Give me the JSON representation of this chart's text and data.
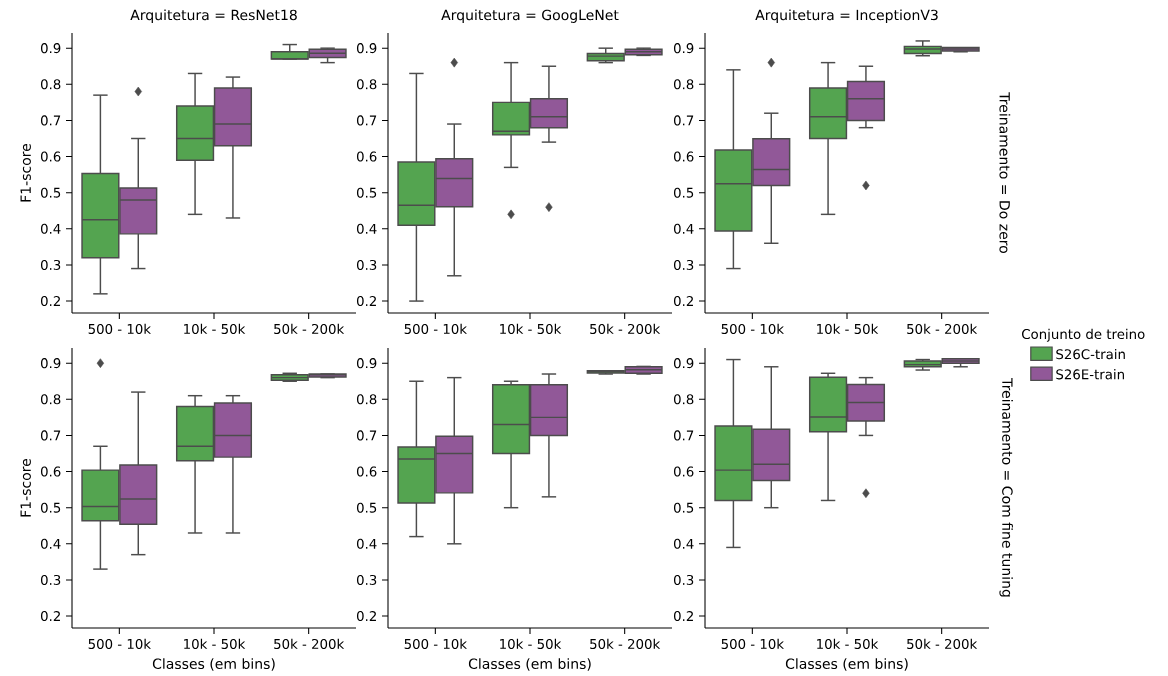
{
  "chart_data": [
    {
      "type": "box",
      "title": "Arquitetura = ResNet18",
      "ylabel": "F1-score",
      "categories": [
        "500 - 10k",
        "10k - 50k",
        "50k - 200k"
      ],
      "ylim": [
        0.167,
        0.942
      ],
      "yticks": [
        0.2,
        0.3,
        0.4,
        0.5,
        0.6,
        0.7,
        0.8,
        0.9
      ],
      "series": [
        {
          "color": "#54a450",
          "boxes": [
            {
              "low": 0.22,
              "q1": 0.32,
              "median": 0.425,
              "q3": 0.553,
              "high": 0.77
            },
            {
              "low": 0.44,
              "q1": 0.59,
              "median": 0.65,
              "q3": 0.74,
              "high": 0.83
            },
            {
              "low": 0.87,
              "q1": 0.87,
              "median": 0.871,
              "q3": 0.89,
              "high": 0.91
            }
          ]
        },
        {
          "color": "#915898",
          "boxes": [
            {
              "low": 0.29,
              "q1": 0.386,
              "median": 0.48,
              "q3": 0.513,
              "high": 0.65,
              "outliers": [
                0.78
              ]
            },
            {
              "low": 0.43,
              "q1": 0.63,
              "median": 0.69,
              "q3": 0.79,
              "high": 0.82
            },
            {
              "low": 0.86,
              "q1": 0.874,
              "median": 0.886,
              "q3": 0.897,
              "high": 0.9
            }
          ]
        }
      ]
    },
    {
      "type": "box",
      "title": "Arquitetura = GoogLeNet",
      "categories": [
        "500 - 10k",
        "10k - 50k",
        "50k - 200k"
      ],
      "ylim": [
        0.167,
        0.942
      ],
      "yticks": [
        0.2,
        0.3,
        0.4,
        0.5,
        0.6,
        0.7,
        0.8,
        0.9
      ],
      "series": [
        {
          "color": "#54a450",
          "boxes": [
            {
              "low": 0.2,
              "q1": 0.41,
              "median": 0.465,
              "q3": 0.585,
              "high": 0.83
            },
            {
              "low": 0.57,
              "q1": 0.66,
              "median": 0.67,
              "q3": 0.75,
              "high": 0.86,
              "outliers": [
                0.44
              ]
            },
            {
              "low": 0.86,
              "q1": 0.865,
              "median": 0.878,
              "q3": 0.885,
              "high": 0.9
            }
          ]
        },
        {
          "color": "#915898",
          "boxes": [
            {
              "low": 0.27,
              "q1": 0.461,
              "median": 0.539,
              "q3": 0.594,
              "high": 0.69,
              "outliers": [
                0.86
              ]
            },
            {
              "low": 0.64,
              "q1": 0.68,
              "median": 0.71,
              "q3": 0.76,
              "high": 0.85,
              "outliers": [
                0.46
              ]
            },
            {
              "low": 0.88,
              "q1": 0.882,
              "median": 0.89,
              "q3": 0.897,
              "high": 0.9
            }
          ]
        }
      ]
    },
    {
      "type": "box",
      "title": "Arquitetura = InceptionV3",
      "y2label": "Treinamento = Do zero",
      "legend": "right",
      "legend_title": "Conjunto de treino",
      "categories": [
        "500 - 10k",
        "10k - 50k",
        "50k - 200k"
      ],
      "ylim": [
        0.167,
        0.942
      ],
      "yticks": [
        0.2,
        0.3,
        0.4,
        0.5,
        0.6,
        0.7,
        0.8,
        0.9
      ],
      "series": [
        {
          "name": "S26C-train",
          "color": "#54a450",
          "boxes": [
            {
              "low": 0.29,
              "q1": 0.394,
              "median": 0.525,
              "q3": 0.618,
              "high": 0.84
            },
            {
              "low": 0.44,
              "q1": 0.65,
              "median": 0.71,
              "q3": 0.79,
              "high": 0.86
            },
            {
              "low": 0.879,
              "q1": 0.885,
              "median": 0.898,
              "q3": 0.905,
              "high": 0.92
            }
          ]
        },
        {
          "name": "S26E-train",
          "color": "#915898",
          "boxes": [
            {
              "low": 0.36,
              "q1": 0.52,
              "median": 0.564,
              "q3": 0.649,
              "high": 0.72,
              "outliers": [
                0.86
              ]
            },
            {
              "low": 0.68,
              "q1": 0.7,
              "median": 0.76,
              "q3": 0.808,
              "high": 0.85,
              "outliers": [
                0.52
              ]
            },
            {
              "low": 0.89,
              "q1": 0.892,
              "median": 0.898,
              "q3": 0.902,
              "high": 0.9
            }
          ]
        }
      ]
    },
    {
      "type": "box",
      "ylabel": "F1-score",
      "xlabel": "Classes (em bins)",
      "categories": [
        "500 - 10k",
        "10k - 50k",
        "50k - 200k"
      ],
      "ylim": [
        0.167,
        0.942
      ],
      "yticks": [
        0.2,
        0.3,
        0.4,
        0.5,
        0.6,
        0.7,
        0.8,
        0.9
      ],
      "series": [
        {
          "color": "#54a450",
          "boxes": [
            {
              "low": 0.33,
              "q1": 0.464,
              "median": 0.503,
              "q3": 0.604,
              "high": 0.67,
              "outliers": [
                0.9
              ]
            },
            {
              "low": 0.43,
              "q1": 0.63,
              "median": 0.67,
              "q3": 0.78,
              "high": 0.81
            },
            {
              "low": 0.85,
              "q1": 0.853,
              "median": 0.86,
              "q3": 0.868,
              "high": 0.872
            }
          ]
        },
        {
          "color": "#915898",
          "boxes": [
            {
              "low": 0.37,
              "q1": 0.454,
              "median": 0.524,
              "q3": 0.618,
              "high": 0.82
            },
            {
              "low": 0.43,
              "q1": 0.64,
              "median": 0.7,
              "q3": 0.79,
              "high": 0.81
            },
            {
              "low": 0.86,
              "q1": 0.862,
              "median": 0.868,
              "q3": 0.87,
              "high": 0.87
            }
          ]
        }
      ]
    },
    {
      "type": "box",
      "xlabel": "Classes (em bins)",
      "categories": [
        "500 - 10k",
        "10k - 50k",
        "50k - 200k"
      ],
      "ylim": [
        0.167,
        0.942
      ],
      "yticks": [
        0.2,
        0.3,
        0.4,
        0.5,
        0.6,
        0.7,
        0.8,
        0.9
      ],
      "series": [
        {
          "color": "#54a450",
          "boxes": [
            {
              "low": 0.42,
              "q1": 0.513,
              "median": 0.635,
              "q3": 0.668,
              "high": 0.85
            },
            {
              "low": 0.5,
              "q1": 0.65,
              "median": 0.73,
              "q3": 0.84,
              "high": 0.85
            },
            {
              "low": 0.87,
              "q1": 0.873,
              "median": 0.876,
              "q3": 0.879,
              "high": 0.879
            }
          ]
        },
        {
          "color": "#915898",
          "boxes": [
            {
              "low": 0.4,
              "q1": 0.541,
              "median": 0.65,
              "q3": 0.698,
              "high": 0.86
            },
            {
              "low": 0.53,
              "q1": 0.7,
              "median": 0.75,
              "q3": 0.84,
              "high": 0.87
            },
            {
              "low": 0.87,
              "q1": 0.872,
              "median": 0.882,
              "q3": 0.89,
              "high": 0.891
            }
          ]
        }
      ]
    },
    {
      "type": "box",
      "xlabel": "Classes (em bins)",
      "y2label": "Treinamento = Com fine tuning",
      "categories": [
        "500 - 10k",
        "10k - 50k",
        "50k - 200k"
      ],
      "ylim": [
        0.167,
        0.942
      ],
      "yticks": [
        0.2,
        0.3,
        0.4,
        0.5,
        0.6,
        0.7,
        0.8,
        0.9
      ],
      "series": [
        {
          "color": "#54a450",
          "boxes": [
            {
              "low": 0.39,
              "q1": 0.52,
              "median": 0.604,
              "q3": 0.726,
              "high": 0.91
            },
            {
              "low": 0.52,
              "q1": 0.71,
              "median": 0.751,
              "q3": 0.861,
              "high": 0.872
            },
            {
              "low": 0.881,
              "q1": 0.89,
              "median": 0.896,
              "q3": 0.906,
              "high": 0.91
            }
          ]
        },
        {
          "color": "#915898",
          "boxes": [
            {
              "low": 0.5,
              "q1": 0.575,
              "median": 0.62,
              "q3": 0.717,
              "high": 0.89
            },
            {
              "low": 0.7,
              "q1": 0.74,
              "median": 0.791,
              "q3": 0.841,
              "high": 0.86,
              "outliers": [
                0.54
              ]
            },
            {
              "low": 0.89,
              "q1": 0.9,
              "median": 0.906,
              "q3": 0.912,
              "high": 0.912
            }
          ]
        }
      ]
    }
  ]
}
